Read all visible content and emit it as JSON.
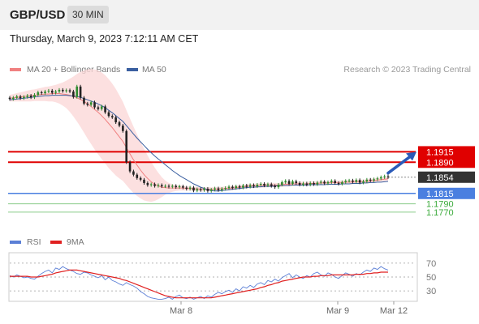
{
  "header": {
    "symbol": "GBP/USD",
    "timeframe": "30 MIN"
  },
  "timestamp": "Thursday, March 9, 2023 7:12:11 AM CET",
  "legend": {
    "bollinger_label": "MA 20 + Bollinger Bands",
    "ma50_label": "MA 50",
    "copyright": "Research © 2023 Trading Central",
    "bollinger_color": "#f08080",
    "ma50_color": "#3a5fa0"
  },
  "rsi_legend": {
    "rsi_label": "RSI",
    "ma_label": "9MA",
    "rsi_color": "#5b7fd6",
    "ma_color": "#e02020"
  },
  "colors": {
    "resistance": "#e00000",
    "support": "#4a7fe0",
    "target": "#3aaa3a",
    "current": "#333333",
    "arrow": "#2a5ab8",
    "candle_up": "#2e8b2e",
    "candle_down": "#222222"
  },
  "chart_data": [
    {
      "type": "candlestick",
      "title": "GBP/USD 30 MIN",
      "x_ticks": [
        "Mar 8",
        "Mar 9",
        "Mar 12"
      ],
      "ylim": [
        1.1725,
        1.2095
      ],
      "last_price": 1.1854,
      "levels": [
        {
          "role": "resistance",
          "value": 1.1915,
          "label": "1.1915"
        },
        {
          "role": "resistance",
          "value": 1.189,
          "label": "1.1890"
        },
        {
          "role": "current",
          "value": 1.1854,
          "label": "1.1854"
        },
        {
          "role": "pivot",
          "value": 1.1815,
          "label": "1.1815"
        },
        {
          "role": "target",
          "value": 1.179,
          "label": "1.1790"
        },
        {
          "role": "target",
          "value": 1.177,
          "label": "1.1770"
        }
      ],
      "arrow": {
        "from": 1.186,
        "to": 1.1915,
        "direction": "up"
      },
      "candles": {
        "close": [
          1.2042,
          1.2045,
          1.2048,
          1.2044,
          1.2047,
          1.205,
          1.2046,
          1.2052,
          1.2058,
          1.2056,
          1.206,
          1.2062,
          1.2057,
          1.206,
          1.2064,
          1.2061,
          1.2063,
          1.206,
          1.2047,
          1.2072,
          1.2045,
          1.2031,
          1.2028,
          1.2034,
          1.2022,
          1.2018,
          1.2024,
          1.201,
          1.2001,
          1.1998,
          1.1986,
          1.1978,
          1.1965,
          1.189,
          1.1868,
          1.186,
          1.1852,
          1.1848,
          1.184,
          1.1835,
          1.1837,
          1.1833,
          1.1835,
          1.1832,
          1.1833,
          1.1831,
          1.1833,
          1.183,
          1.1832,
          1.1829,
          1.1826,
          1.1829,
          1.1822,
          1.1825,
          1.1823,
          1.1826,
          1.1821,
          1.1824,
          1.1827,
          1.1823,
          1.1826,
          1.1828,
          1.1831,
          1.1828,
          1.1832,
          1.1829,
          1.1834,
          1.1831,
          1.1835,
          1.1832,
          1.1836,
          1.1838,
          1.1834,
          1.1837,
          1.1833,
          1.183,
          1.1836,
          1.1842,
          1.1845,
          1.1838,
          1.1844,
          1.184,
          1.1836,
          1.1839,
          1.1836,
          1.184,
          1.1837,
          1.1841,
          1.1843,
          1.1839,
          1.1842,
          1.1845,
          1.184,
          1.1838,
          1.1842,
          1.1845,
          1.1846,
          1.1843,
          1.1847,
          1.1841,
          1.1844,
          1.1848,
          1.1846,
          1.1849,
          1.1851,
          1.1854,
          1.1856,
          1.1854
        ],
        "open": [
          1.2045,
          1.2042,
          1.2045,
          1.2048,
          1.2044,
          1.2047,
          1.205,
          1.2046,
          1.2052,
          1.2058,
          1.2056,
          1.206,
          1.2062,
          1.2057,
          1.206,
          1.2064,
          1.2061,
          1.2063,
          1.206,
          1.2047,
          1.2072,
          1.2045,
          1.2031,
          1.2028,
          1.2034,
          1.2022,
          1.2018,
          1.2024,
          1.201,
          1.2001,
          1.1998,
          1.1986,
          1.1978,
          1.1965,
          1.189,
          1.1868,
          1.186,
          1.1852,
          1.1848,
          1.184,
          1.1835,
          1.1837,
          1.1833,
          1.1835,
          1.1832,
          1.1833,
          1.1831,
          1.1833,
          1.183,
          1.1832,
          1.1829,
          1.1826,
          1.1829,
          1.1822,
          1.1825,
          1.1823,
          1.1826,
          1.1821,
          1.1824,
          1.1827,
          1.1823,
          1.1826,
          1.1828,
          1.1831,
          1.1828,
          1.1832,
          1.1829,
          1.1834,
          1.1831,
          1.1835,
          1.1832,
          1.1836,
          1.1838,
          1.1834,
          1.1837,
          1.1833,
          1.183,
          1.1836,
          1.1842,
          1.1845,
          1.1838,
          1.1844,
          1.184,
          1.1836,
          1.1839,
          1.1836,
          1.184,
          1.1837,
          1.1841,
          1.1843,
          1.1839,
          1.1842,
          1.1845,
          1.184,
          1.1838,
          1.1842,
          1.1845,
          1.1846,
          1.1843,
          1.1847,
          1.1841,
          1.1844,
          1.1848,
          1.1846,
          1.1849,
          1.1851,
          1.1854,
          1.1856
        ]
      },
      "ma50": [
        1.204,
        1.2041,
        1.2042,
        1.2043,
        1.2044,
        1.2045,
        1.2046,
        1.2047,
        1.2048,
        1.2049,
        1.205,
        1.205,
        1.2051,
        1.2051,
        1.2051,
        1.2051,
        1.2051,
        1.205,
        1.2049,
        1.2048,
        1.2046,
        1.2043,
        1.204,
        1.2037,
        1.2034,
        1.203,
        1.2026,
        1.2021,
        1.2015,
        1.2009,
        1.2002,
        1.1995,
        1.1988,
        1.1978,
        1.1968,
        1.1958,
        1.1948,
        1.1939,
        1.193,
        1.1921,
        1.1913,
        1.1905,
        1.1898,
        1.1891,
        1.1884,
        1.1877,
        1.187,
        1.1864,
        1.1858,
        1.1853,
        1.1848,
        1.1843,
        1.1838,
        1.1834,
        1.183,
        1.1827,
        1.1824,
        1.1822,
        1.1821,
        1.1821,
        1.1822,
        1.1823,
        1.1824,
        1.1825,
        1.1826,
        1.1827,
        1.1828,
        1.1829,
        1.183,
        1.183,
        1.1831,
        1.1831,
        1.1832,
        1.1832,
        1.1832,
        1.1833,
        1.1833,
        1.1834,
        1.1834,
        1.1834,
        1.1835,
        1.1835,
        1.1835,
        1.1835,
        1.1835,
        1.1836,
        1.1836,
        1.1836,
        1.1836,
        1.1836,
        1.1837,
        1.1837,
        1.1837,
        1.1837,
        1.1838,
        1.1838,
        1.1838,
        1.1839,
        1.1839,
        1.1839,
        1.184,
        1.184,
        1.1841,
        1.1841,
        1.1842,
        1.1842,
        1.1843,
        1.1844
      ],
      "ma20": [
        1.2044,
        1.2045,
        1.2046,
        1.2047,
        1.2048,
        1.2049,
        1.205,
        1.2051,
        1.2052,
        1.2053,
        1.2054,
        1.2054,
        1.2055,
        1.2055,
        1.2055,
        1.2054,
        1.2053,
        1.2051,
        1.2048,
        1.2045,
        1.2041,
        1.2036,
        1.203,
        1.2024,
        1.2017,
        1.201,
        1.2002,
        1.1993,
        1.1983,
        1.1973,
        1.1962,
        1.1951,
        1.194,
        1.1925,
        1.191,
        1.1896,
        1.1883,
        1.1871,
        1.186,
        1.1851,
        1.1843,
        1.1837,
        1.1833,
        1.183,
        1.1829,
        1.1828,
        1.1828,
        1.1828,
        1.1828,
        1.1828,
        1.1827,
        1.1827,
        1.1826,
        1.1826,
        1.1825,
        1.1825,
        1.1825,
        1.1825,
        1.1825,
        1.1826,
        1.1826,
        1.1827,
        1.1827,
        1.1828,
        1.1829,
        1.183,
        1.1831,
        1.1832,
        1.1833,
        1.1833,
        1.1834,
        1.1834,
        1.1834,
        1.1835,
        1.1835,
        1.1835,
        1.1835,
        1.1836,
        1.1837,
        1.1837,
        1.1838,
        1.1838,
        1.1838,
        1.1838,
        1.1838,
        1.1839,
        1.1839,
        1.1839,
        1.184,
        1.184,
        1.184,
        1.1841,
        1.1841,
        1.1841,
        1.1841,
        1.1842,
        1.1842,
        1.1842,
        1.1843,
        1.1843,
        1.1843,
        1.1844,
        1.1845,
        1.1846,
        1.1847,
        1.1848,
        1.1849,
        1.185
      ],
      "band_width": [
        0.0008,
        0.0009,
        0.001,
        0.0011,
        0.0012,
        0.0013,
        0.0014,
        0.0014,
        0.0015,
        0.0016,
        0.0017,
        0.0018,
        0.0019,
        0.0021,
        0.0024,
        0.0028,
        0.0033,
        0.004,
        0.0048,
        0.0057,
        0.0066,
        0.0075,
        0.0083,
        0.009,
        0.0096,
        0.0101,
        0.0104,
        0.0106,
        0.0107,
        0.0106,
        0.0104,
        0.01,
        0.0095,
        0.009,
        0.0085,
        0.008,
        0.0074,
        0.0068,
        0.0062,
        0.0055,
        0.0048,
        0.004,
        0.0032,
        0.0024,
        0.0017,
        0.0012,
        0.0009,
        0.0007,
        0.0006,
        0.0006,
        0.0005,
        0.0005,
        0.0005,
        0.0005,
        0.0005,
        0.0005,
        0.0005,
        0.0005,
        0.0005,
        0.0005,
        0.0005,
        0.0005,
        0.0005,
        0.0005,
        0.0005,
        0.0005,
        0.0005,
        0.0005,
        0.0005,
        0.0005,
        0.0005,
        0.0005,
        0.0005,
        0.0005,
        0.0005,
        0.0005,
        0.0005,
        0.0005,
        0.0005,
        0.0005,
        0.0005,
        0.0005,
        0.0005,
        0.0005,
        0.0005,
        0.0005,
        0.0005,
        0.0005,
        0.0005,
        0.0005,
        0.0005,
        0.0005,
        0.0005,
        0.0005,
        0.0005,
        0.0005,
        0.0005,
        0.0005,
        0.0005,
        0.0005,
        0.0005,
        0.0005,
        0.0005,
        0.0005,
        0.0005,
        0.0005,
        0.0005,
        0.0005
      ]
    },
    {
      "type": "line",
      "title": "RSI",
      "y_ticks": [
        70,
        50,
        30
      ],
      "ylim": [
        15,
        85
      ],
      "series": [
        {
          "name": "RSI",
          "values": [
            52,
            50,
            53,
            51,
            49,
            50,
            48,
            47,
            51,
            55,
            58,
            60,
            56,
            63,
            61,
            65,
            62,
            60,
            58,
            55,
            54,
            57,
            56,
            53,
            51,
            49,
            52,
            46,
            50,
            45,
            43,
            40,
            38,
            42,
            39,
            37,
            34,
            29,
            26,
            22,
            20,
            19,
            18,
            18,
            19,
            21,
            18,
            22,
            24,
            20,
            19,
            21,
            18,
            20,
            22,
            19,
            23,
            21,
            25,
            28,
            26,
            29,
            31,
            28,
            33,
            30,
            36,
            34,
            38,
            35,
            40,
            42,
            39,
            45,
            43,
            47,
            44,
            49,
            52,
            55,
            49,
            53,
            50,
            48,
            52,
            50,
            55,
            57,
            53,
            51,
            56,
            54,
            50,
            48,
            52,
            56,
            54,
            51,
            55,
            53,
            57,
            60,
            58,
            63,
            61,
            65,
            62,
            60
          ]
        },
        {
          "name": "9MA",
          "values": [
            51,
            51,
            51,
            51,
            51,
            51,
            50,
            50,
            50,
            51,
            52,
            53,
            54,
            56,
            57,
            58,
            59,
            60,
            60,
            60,
            59,
            58,
            57,
            56,
            55,
            54,
            53,
            52,
            51,
            50,
            49,
            48,
            46,
            45,
            43,
            41,
            39,
            37,
            35,
            33,
            31,
            29,
            27,
            25,
            23,
            22,
            21,
            20,
            20,
            20,
            20,
            20,
            20,
            20,
            20,
            20,
            20,
            20,
            21,
            22,
            23,
            24,
            25,
            26,
            27,
            28,
            29,
            30,
            31,
            32,
            33,
            35,
            36,
            38,
            39,
            41,
            42,
            44,
            45,
            46,
            47,
            48,
            49,
            50,
            50,
            50,
            51,
            51,
            52,
            52,
            52,
            53,
            53,
            53,
            53,
            53,
            53,
            53,
            54,
            54,
            54,
            55,
            55,
            56,
            56,
            57,
            57,
            57
          ]
        }
      ]
    }
  ]
}
